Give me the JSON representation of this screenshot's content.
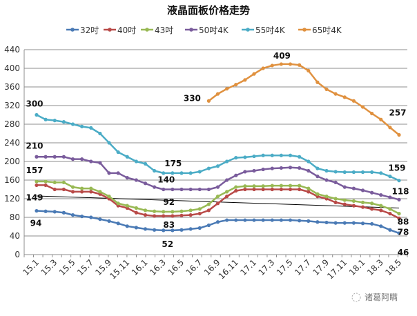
{
  "chart_data": {
    "type": "line",
    "title": "液晶面板价格走势",
    "legend_position": "top",
    "grid": true,
    "ylim": [
      0,
      440
    ],
    "yticks": [
      0,
      40,
      80,
      120,
      160,
      200,
      240,
      280,
      320,
      360,
      400,
      440
    ],
    "categories": [
      "15.1",
      "15.2",
      "15.3",
      "15.4",
      "15.5",
      "15.6",
      "15.7",
      "15.8",
      "15.9",
      "15.10",
      "15.11",
      "15.12",
      "16.1",
      "16.2",
      "16.3",
      "16.4",
      "16.5",
      "16.6",
      "16.7",
      "16.8",
      "16.9",
      "16.10",
      "16.11",
      "16.12",
      "17.1",
      "17.2",
      "17.3",
      "17.4",
      "17.5",
      "17.6",
      "17.7",
      "17.8",
      "17.9",
      "17.10",
      "17.11",
      "17.12",
      "18.1",
      "18.2",
      "18.3",
      "18.4",
      "18.5"
    ],
    "xtick_labels": [
      "15.1",
      "15.3",
      "15.5",
      "15.7",
      "15.9",
      "15.11",
      "16.1",
      "16.3",
      "16.5",
      "16.7",
      "16.9",
      "16.11",
      "17.1",
      "17.3",
      "17.5",
      "17.7",
      "17.9",
      "17.11",
      "18.1",
      "18.3",
      "18.5"
    ],
    "series": [
      {
        "name": "32吋",
        "color": "#4a7ab5",
        "values": [
          94,
          93,
          92,
          90,
          85,
          82,
          80,
          76,
          72,
          67,
          61,
          58,
          55,
          53,
          52,
          52,
          53,
          55,
          57,
          63,
          70,
          74,
          74,
          74,
          74,
          74,
          74,
          74,
          74,
          73,
          72,
          70,
          69,
          68,
          68,
          68,
          67,
          66,
          61,
          53,
          46
        ]
      },
      {
        "name": "40吋",
        "color": "#b94a48",
        "values": [
          149,
          149,
          140,
          140,
          135,
          135,
          135,
          130,
          120,
          105,
          100,
          90,
          85,
          83,
          83,
          83,
          84,
          85,
          88,
          95,
          110,
          125,
          137,
          140,
          140,
          140,
          140,
          140,
          140,
          140,
          135,
          125,
          120,
          112,
          108,
          105,
          102,
          98,
          95,
          88,
          78
        ]
      },
      {
        "name": "43吋",
        "color": "#98b954",
        "values": [
          157,
          157,
          155,
          155,
          145,
          142,
          142,
          135,
          125,
          110,
          105,
          100,
          95,
          93,
          92,
          92,
          93,
          95,
          98,
          108,
          125,
          135,
          145,
          147,
          147,
          147,
          148,
          148,
          148,
          148,
          142,
          130,
          125,
          120,
          117,
          115,
          112,
          110,
          105,
          98,
          88
        ]
      },
      {
        "name": "50吋4K",
        "color": "#7a5c9c",
        "values": [
          210,
          210,
          210,
          210,
          205,
          205,
          200,
          197,
          175,
          175,
          165,
          160,
          153,
          145,
          140,
          140,
          140,
          140,
          140,
          140,
          145,
          160,
          170,
          178,
          180,
          183,
          185,
          186,
          187,
          186,
          180,
          168,
          160,
          155,
          145,
          142,
          138,
          133,
          128,
          123,
          118
        ]
      },
      {
        "name": "55吋4K",
        "color": "#4bacc6",
        "values": [
          300,
          290,
          288,
          285,
          280,
          275,
          272,
          260,
          240,
          220,
          210,
          200,
          195,
          180,
          175,
          175,
          175,
          175,
          178,
          185,
          190,
          200,
          208,
          209,
          211,
          213,
          213,
          213,
          213,
          210,
          200,
          185,
          180,
          178,
          177,
          177,
          177,
          177,
          175,
          168,
          159
        ]
      },
      {
        "name": "65吋4K",
        "color": "#e0913f",
        "values": [
          null,
          null,
          null,
          null,
          null,
          null,
          null,
          null,
          null,
          null,
          null,
          null,
          null,
          null,
          null,
          null,
          null,
          null,
          null,
          330,
          345,
          356,
          365,
          375,
          388,
          400,
          406,
          409,
          409,
          407,
          395,
          370,
          355,
          345,
          338,
          330,
          317,
          303,
          290,
          273,
          257
        ]
      }
    ],
    "trendline": {
      "color": "#000000",
      "start": 126,
      "end": 100
    },
    "data_labels": [
      {
        "series": 4,
        "index": 0,
        "text": "300"
      },
      {
        "series": 3,
        "index": 0,
        "text": "210"
      },
      {
        "series": 2,
        "index": 0,
        "text": "157"
      },
      {
        "series": 1,
        "index": 0,
        "text": "149"
      },
      {
        "series": 0,
        "index": 0,
        "text": "94"
      },
      {
        "series": 4,
        "index": 14,
        "text": "175"
      },
      {
        "series": 3,
        "index": 14,
        "text": "140"
      },
      {
        "series": 2,
        "index": 14,
        "text": "92"
      },
      {
        "series": 1,
        "index": 14,
        "text": "83"
      },
      {
        "series": 0,
        "index": 14,
        "text": "52"
      },
      {
        "series": 5,
        "index": 19,
        "text": "330"
      },
      {
        "series": 5,
        "index": 27,
        "text": "409"
      },
      {
        "series": 5,
        "index": 40,
        "text": "257"
      },
      {
        "series": 4,
        "index": 40,
        "text": "159"
      },
      {
        "series": 3,
        "index": 40,
        "text": "118"
      },
      {
        "series": 2,
        "index": 40,
        "text": "88"
      },
      {
        "series": 1,
        "index": 40,
        "text": "78"
      },
      {
        "series": 0,
        "index": 40,
        "text": "46"
      }
    ]
  },
  "watermark": "诸葛阿瞒"
}
